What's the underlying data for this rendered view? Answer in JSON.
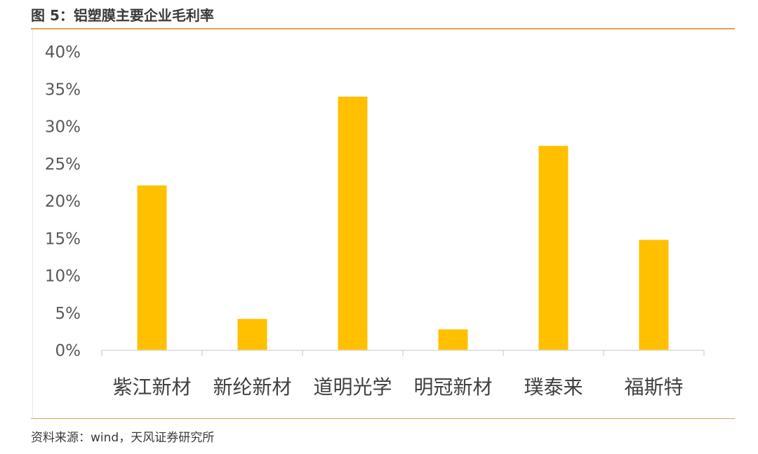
{
  "figure": {
    "title": "图 5：铝塑膜主要企业毛利率",
    "source": "资料来源：wind，天风证券研究所"
  },
  "colors": {
    "bar": "#ffc000",
    "accent_rule": "#e8a050",
    "axis": "#d9d9d9"
  },
  "chart_data": {
    "type": "bar",
    "title": "",
    "xlabel": "",
    "ylabel": "",
    "categories": [
      "紫江新材",
      "新纶新材",
      "道明光学",
      "明冠新材",
      "璞泰来",
      "福斯特"
    ],
    "values": [
      22.1,
      4.2,
      34.0,
      2.8,
      27.4,
      14.8
    ],
    "ylim": [
      0,
      40
    ],
    "yticks": [
      0,
      5,
      10,
      15,
      20,
      25,
      30,
      35,
      40
    ],
    "ytick_labels": [
      "0%",
      "5%",
      "10%",
      "15%",
      "20%",
      "25%",
      "30%",
      "35%",
      "40%"
    ],
    "grid": false,
    "legend": "none"
  }
}
